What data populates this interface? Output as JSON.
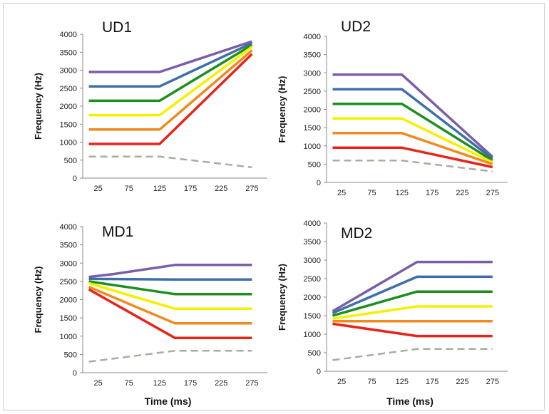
{
  "colors": {
    "purple": "#7a5ea8",
    "blue": "#3d6fa8",
    "green": "#1e8f1e",
    "yellow": "#f4f000",
    "orange": "#f08a1c",
    "red": "#e8231a",
    "dashed": "#a9aca0"
  },
  "chart_data": [
    {
      "type": "line",
      "title": "UD1",
      "ylabel": "Frequency (Hz)",
      "xlabel": "",
      "xticks": [
        25,
        75,
        125,
        175,
        225,
        275
      ],
      "yticks": [
        0,
        500,
        1000,
        1500,
        2000,
        2500,
        3000,
        3500,
        4000
      ],
      "ylim": [
        0,
        4000
      ],
      "xlim": [
        0,
        300
      ],
      "series": [
        {
          "color": "purple",
          "x": [
            10,
            125,
            275
          ],
          "y": [
            2950,
            2950,
            3800
          ]
        },
        {
          "color": "blue",
          "x": [
            10,
            125,
            275
          ],
          "y": [
            2550,
            2550,
            3750
          ]
        },
        {
          "color": "green",
          "x": [
            10,
            125,
            275
          ],
          "y": [
            2150,
            2150,
            3700
          ]
        },
        {
          "color": "yellow",
          "x": [
            10,
            125,
            275
          ],
          "y": [
            1750,
            1750,
            3650
          ]
        },
        {
          "color": "orange",
          "x": [
            10,
            125,
            275
          ],
          "y": [
            1350,
            1350,
            3550
          ]
        },
        {
          "color": "red",
          "x": [
            10,
            125,
            275
          ],
          "y": [
            950,
            950,
            3450
          ]
        },
        {
          "color": "dashed",
          "dashed": true,
          "x": [
            10,
            125,
            275
          ],
          "y": [
            600,
            600,
            300
          ]
        }
      ]
    },
    {
      "type": "line",
      "title": "UD2",
      "ylabel": "Frequency (Hz)",
      "xlabel": "",
      "xticks": [
        25,
        75,
        125,
        175,
        225,
        275
      ],
      "yticks": [
        0,
        500,
        1000,
        1500,
        2000,
        2500,
        3000,
        3500,
        4000
      ],
      "ylim": [
        0,
        4000
      ],
      "xlim": [
        0,
        300
      ],
      "series": [
        {
          "color": "purple",
          "x": [
            10,
            125,
            275
          ],
          "y": [
            2950,
            2950,
            700
          ]
        },
        {
          "color": "blue",
          "x": [
            10,
            125,
            275
          ],
          "y": [
            2550,
            2550,
            650
          ]
        },
        {
          "color": "green",
          "x": [
            10,
            125,
            275
          ],
          "y": [
            2150,
            2150,
            600
          ]
        },
        {
          "color": "yellow",
          "x": [
            10,
            125,
            275
          ],
          "y": [
            1750,
            1750,
            550
          ]
        },
        {
          "color": "orange",
          "x": [
            10,
            125,
            275
          ],
          "y": [
            1350,
            1350,
            500
          ]
        },
        {
          "color": "red",
          "x": [
            10,
            125,
            275
          ],
          "y": [
            950,
            950,
            420
          ]
        },
        {
          "color": "dashed",
          "dashed": true,
          "x": [
            10,
            125,
            275
          ],
          "y": [
            600,
            600,
            300
          ]
        }
      ]
    },
    {
      "type": "line",
      "title": "MD1",
      "ylabel": "Frequency (Hz)",
      "xlabel": "Time (ms)",
      "xticks": [
        25,
        75,
        125,
        175,
        225,
        275
      ],
      "yticks": [
        0,
        500,
        1000,
        1500,
        2000,
        2500,
        3000,
        3500,
        4000
      ],
      "ylim": [
        0,
        4000
      ],
      "xlim": [
        0,
        300
      ],
      "series": [
        {
          "color": "purple",
          "x": [
            10,
            50,
            150,
            275
          ],
          "y": [
            2620,
            2700,
            2950,
            2950
          ]
        },
        {
          "color": "blue",
          "x": [
            10,
            150,
            275
          ],
          "y": [
            2570,
            2550,
            2550
          ]
        },
        {
          "color": "green",
          "x": [
            10,
            150,
            275
          ],
          "y": [
            2500,
            2150,
            2150
          ]
        },
        {
          "color": "yellow",
          "x": [
            10,
            150,
            275
          ],
          "y": [
            2450,
            1750,
            1750
          ]
        },
        {
          "color": "orange",
          "x": [
            10,
            150,
            275
          ],
          "y": [
            2350,
            1350,
            1350
          ]
        },
        {
          "color": "red",
          "x": [
            10,
            150,
            275
          ],
          "y": [
            2280,
            950,
            950
          ]
        },
        {
          "color": "dashed",
          "dashed": true,
          "x": [
            10,
            150,
            275
          ],
          "y": [
            300,
            600,
            600
          ]
        }
      ]
    },
    {
      "type": "line",
      "title": "MD2",
      "ylabel": "Frequency (Hz)",
      "xlabel": "Time (ms)",
      "xticks": [
        25,
        75,
        125,
        175,
        225,
        275
      ],
      "yticks": [
        0,
        500,
        1000,
        1500,
        2000,
        2500,
        3000,
        3500,
        4000
      ],
      "ylim": [
        0,
        4000
      ],
      "xlim": [
        0,
        300
      ],
      "series": [
        {
          "color": "purple",
          "x": [
            10,
            150,
            275
          ],
          "y": [
            1620,
            2950,
            2950
          ]
        },
        {
          "color": "blue",
          "x": [
            10,
            150,
            275
          ],
          "y": [
            1570,
            2550,
            2550
          ]
        },
        {
          "color": "green",
          "x": [
            10,
            150,
            275
          ],
          "y": [
            1500,
            2150,
            2150
          ]
        },
        {
          "color": "yellow",
          "x": [
            10,
            150,
            275
          ],
          "y": [
            1420,
            1750,
            1750
          ]
        },
        {
          "color": "orange",
          "x": [
            10,
            150,
            275
          ],
          "y": [
            1350,
            1350,
            1350
          ]
        },
        {
          "color": "red",
          "x": [
            10,
            150,
            275
          ],
          "y": [
            1280,
            950,
            950
          ]
        },
        {
          "color": "dashed",
          "dashed": true,
          "x": [
            10,
            150,
            275
          ],
          "y": [
            300,
            600,
            600
          ]
        }
      ]
    }
  ]
}
